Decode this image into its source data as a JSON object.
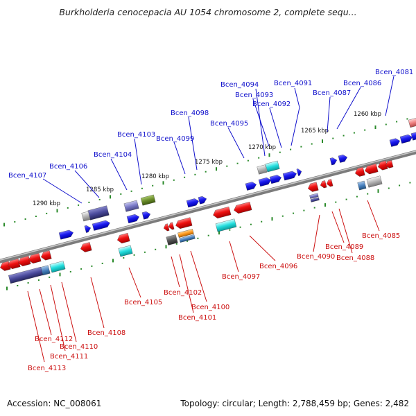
{
  "title": "Burkholderia cenocepacia AU 1054 chromosome 2, complete sequ...",
  "footer": {
    "accession": "Accession: NC_008061",
    "topology": "Topology: circular; Length: 2,788,459 bp; Genes: 2,482"
  },
  "colors": {
    "forward_label": "#1010cc",
    "reverse_label": "#cc1010",
    "forward_gene": "#1a1aee",
    "reverse_gene": "#ee1111",
    "axis": "#909090",
    "tick": "#2a8a2a"
  },
  "scale": {
    "upper": [
      "1290 kbp",
      "1285 kbp",
      "1280 kbp",
      "1275 kbp",
      "1270 kbp",
      "1265 kbp",
      "1260 kbp"
    ]
  },
  "genes": {
    "forward": [
      "Bcen_4107",
      "Bcen_4106",
      "Bcen_4104",
      "Bcen_4103",
      "Bcen_4099",
      "Bcen_4098",
      "Bcen_4095",
      "Bcen_4094",
      "Bcen_4093",
      "Bcen_4092",
      "Bcen_4091",
      "Bcen_4087",
      "Bcen_4086",
      "Bcen_4081"
    ],
    "reverse": [
      "Bcen_4113",
      "Bcen_4112",
      "Bcen_4111",
      "Bcen_4110",
      "Bcen_4108",
      "Bcen_4105",
      "Bcen_4102",
      "Bcen_4101",
      "Bcen_4100",
      "Bcen_4097",
      "Bcen_4096",
      "Bcen_4090",
      "Bcen_4089",
      "Bcen_4088",
      "Bcen_4085"
    ]
  }
}
